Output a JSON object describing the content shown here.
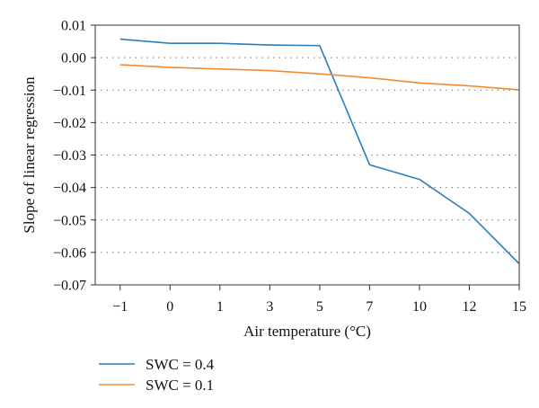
{
  "chart_data": {
    "type": "line",
    "categories": [
      "−1",
      "0",
      "1",
      "3",
      "5",
      "7",
      "10",
      "12",
      "15"
    ],
    "series": [
      {
        "name": "SWC = 0.4",
        "color": "#2a7fba",
        "values": [
          0.0057,
          0.0044,
          0.0044,
          0.0039,
          0.0037,
          -0.033,
          -0.0375,
          -0.048,
          -0.0635
        ]
      },
      {
        "name": "SWC = 0.1",
        "color": "#f28a32",
        "values": [
          -0.0022,
          -0.003,
          -0.0035,
          -0.004,
          -0.005,
          -0.0062,
          -0.0078,
          -0.0087,
          -0.0099
        ]
      }
    ],
    "ylim": [
      -0.07,
      0.01
    ],
    "yticks": [
      0.01,
      0.0,
      -0.01,
      -0.02,
      -0.03,
      -0.04,
      -0.05,
      -0.06,
      -0.07
    ],
    "ytick_labels": [
      "0.01",
      "0.00",
      "−0.01",
      "−0.02",
      "−0.03",
      "−0.04",
      "−0.05",
      "−0.06",
      "−0.07"
    ],
    "xlabel": "Air temperature (°C)",
    "ylabel": "Slope of linear regression",
    "grid": "horizontal-dotted",
    "legend_position": "bottom-left"
  }
}
